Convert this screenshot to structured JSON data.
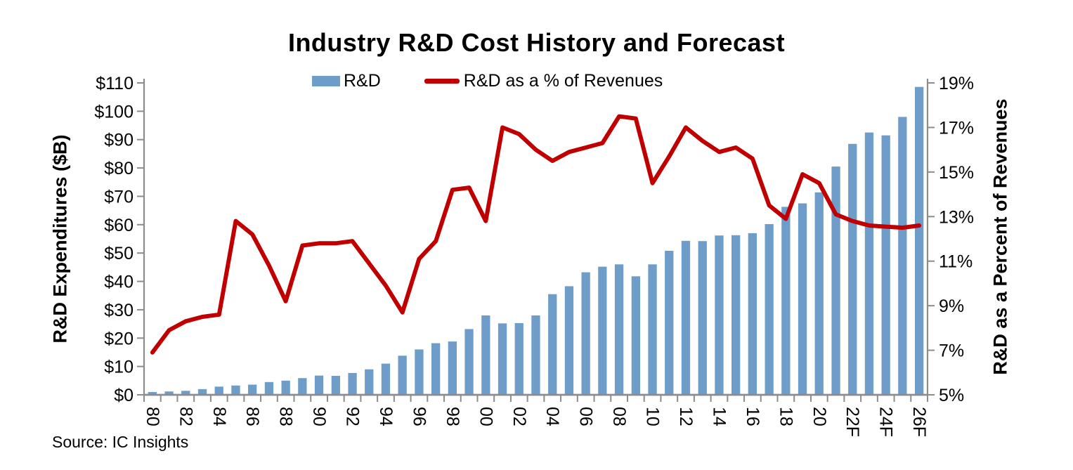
{
  "title": "Industry R&D Cost History and Forecast",
  "source": "Source: IC Insights",
  "legend": [
    {
      "label": "R&D",
      "swatch": "bar",
      "color": "#6F9DCA"
    },
    {
      "label": "R&D as a % of Revenues",
      "swatch": "line",
      "color": "#C00000"
    }
  ],
  "chart_data": {
    "type": "bar+line combo",
    "title": "Industry R&D Cost History and Forecast",
    "grid": false,
    "legend_position": "top",
    "categories": [
      1980,
      1981,
      1982,
      1983,
      1984,
      1985,
      1986,
      1987,
      1988,
      1989,
      1990,
      1991,
      1992,
      1993,
      1994,
      1995,
      1996,
      1997,
      1998,
      1999,
      2000,
      2001,
      2002,
      2003,
      2004,
      2005,
      2006,
      2007,
      2008,
      2009,
      2010,
      2011,
      2012,
      2013,
      2014,
      2015,
      2016,
      2017,
      2018,
      2019,
      2020,
      2021,
      2022,
      2023,
      2024,
      2025,
      2026
    ],
    "x_tick_labels": [
      "80",
      "82",
      "84",
      "86",
      "88",
      "90",
      "92",
      "94",
      "96",
      "98",
      "00",
      "02",
      "04",
      "06",
      "08",
      "10",
      "12",
      "14",
      "16",
      "18",
      "20",
      "22F",
      "24F",
      "26F"
    ],
    "x_label_every": 2,
    "series": [
      {
        "name": "R&D",
        "type": "bar",
        "axis": "left",
        "unit": "$B",
        "color": "#6F9DCA",
        "values": [
          1.0,
          1.2,
          1.4,
          2.0,
          2.9,
          3.3,
          3.6,
          4.5,
          5.0,
          5.9,
          6.8,
          6.7,
          7.7,
          9.0,
          11.0,
          13.8,
          16.0,
          18.2,
          18.8,
          23.2,
          28.0,
          25.2,
          25.3,
          28.0,
          35.5,
          38.3,
          43.2,
          45.2,
          46.0,
          41.8,
          46.0,
          50.8,
          54.3,
          54.2,
          56.2,
          56.3,
          57.0,
          60.2,
          66.3,
          67.5,
          71.4,
          80.5,
          88.5,
          92.5,
          91.5,
          98.0,
          108.6
        ]
      },
      {
        "name": "R&D as a % of Revenues",
        "type": "line",
        "axis": "right",
        "unit": "%",
        "color": "#C00000",
        "values": [
          6.9,
          7.9,
          8.3,
          8.5,
          8.6,
          12.8,
          12.2,
          10.8,
          9.2,
          11.7,
          11.8,
          11.8,
          11.9,
          10.9,
          9.9,
          8.7,
          11.1,
          11.9,
          14.2,
          14.3,
          12.8,
          17.0,
          16.7,
          16.0,
          15.5,
          15.9,
          16.1,
          16.3,
          17.5,
          17.4,
          14.5,
          15.7,
          17.0,
          16.4,
          15.9,
          16.1,
          15.6,
          13.5,
          12.9,
          14.9,
          14.5,
          13.1,
          12.8,
          12.6,
          12.55,
          12.5,
          12.6
        ]
      }
    ],
    "left_axis": {
      "title": "R&D Expenditures ($B)",
      "min": 0,
      "max": 110,
      "step": 10,
      "tick_labels": [
        "$0",
        "$10",
        "$20",
        "$30",
        "$40",
        "$50",
        "$60",
        "$70",
        "$80",
        "$90",
        "$100",
        "$110"
      ]
    },
    "right_axis": {
      "title": "R&D as a Percent of Revenues",
      "min": 5,
      "max": 19,
      "step": 2,
      "tick_labels": [
        "5%",
        "7%",
        "9%",
        "11%",
        "13%",
        "15%",
        "17%",
        "19%"
      ]
    },
    "axis_color": "#8C8C8C"
  }
}
